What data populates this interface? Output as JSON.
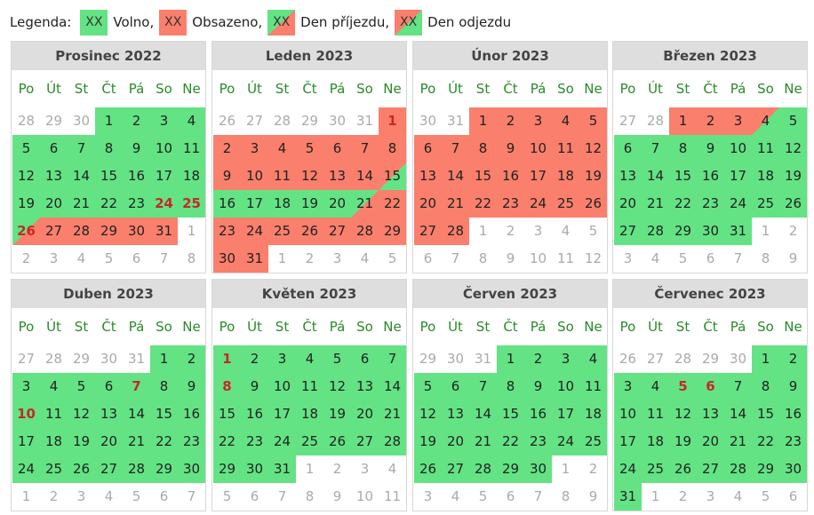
{
  "legend": {
    "label": "Legenda:",
    "swatch_text": "XX",
    "items": [
      {
        "state": "free",
        "text": "Volno,"
      },
      {
        "state": "busy",
        "text": "Obsazeno,"
      },
      {
        "state": "arr",
        "text": "Den příjezdu,"
      },
      {
        "state": "dep",
        "text": "Den odjezdu"
      }
    ]
  },
  "colors": {
    "free": "#63e384",
    "busy": "#fa7f6c",
    "weekday": "#2a8a2a",
    "holiday": "#c62828"
  },
  "weekdays": [
    "Po",
    "Út",
    "St",
    "Čt",
    "Pá",
    "So",
    "Ne"
  ],
  "months": [
    {
      "title": "Prosinec 2022",
      "cells": [
        [
          "28",
          "o"
        ],
        [
          "29",
          "o"
        ],
        [
          "30",
          "o"
        ],
        [
          "1",
          "free"
        ],
        [
          "2",
          "free"
        ],
        [
          "3",
          "free"
        ],
        [
          "4",
          "free"
        ],
        [
          "5",
          "free"
        ],
        [
          "6",
          "free"
        ],
        [
          "7",
          "free"
        ],
        [
          "8",
          "free"
        ],
        [
          "9",
          "free"
        ],
        [
          "10",
          "free"
        ],
        [
          "11",
          "free"
        ],
        [
          "12",
          "free"
        ],
        [
          "13",
          "free"
        ],
        [
          "14",
          "free"
        ],
        [
          "15",
          "free"
        ],
        [
          "16",
          "free"
        ],
        [
          "17",
          "free"
        ],
        [
          "18",
          "free"
        ],
        [
          "19",
          "free"
        ],
        [
          "20",
          "free"
        ],
        [
          "21",
          "free"
        ],
        [
          "22",
          "free"
        ],
        [
          "23",
          "free"
        ],
        [
          "24",
          "free",
          "h"
        ],
        [
          "25",
          "free",
          "h"
        ],
        [
          "26",
          "arr",
          "h"
        ],
        [
          "27",
          "busy"
        ],
        [
          "28",
          "busy"
        ],
        [
          "29",
          "busy"
        ],
        [
          "30",
          "busy"
        ],
        [
          "31",
          "busy"
        ],
        [
          "1",
          "o"
        ],
        [
          "2",
          "o"
        ],
        [
          "3",
          "o"
        ],
        [
          "4",
          "o"
        ],
        [
          "5",
          "o"
        ],
        [
          "6",
          "o"
        ],
        [
          "7",
          "o"
        ],
        [
          "8",
          "o"
        ]
      ]
    },
    {
      "title": "Leden 2023",
      "cells": [
        [
          "26",
          "o"
        ],
        [
          "27",
          "o"
        ],
        [
          "28",
          "o"
        ],
        [
          "29",
          "o"
        ],
        [
          "30",
          "o"
        ],
        [
          "31",
          "o"
        ],
        [
          "1",
          "busy",
          "h"
        ],
        [
          "2",
          "busy"
        ],
        [
          "3",
          "busy"
        ],
        [
          "4",
          "busy"
        ],
        [
          "5",
          "busy"
        ],
        [
          "6",
          "busy"
        ],
        [
          "7",
          "busy"
        ],
        [
          "8",
          "busy"
        ],
        [
          "9",
          "busy"
        ],
        [
          "10",
          "busy"
        ],
        [
          "11",
          "busy"
        ],
        [
          "12",
          "busy"
        ],
        [
          "13",
          "busy"
        ],
        [
          "14",
          "busy"
        ],
        [
          "15",
          "dep"
        ],
        [
          "16",
          "free"
        ],
        [
          "17",
          "free"
        ],
        [
          "18",
          "free"
        ],
        [
          "19",
          "free"
        ],
        [
          "20",
          "free"
        ],
        [
          "21",
          "arr"
        ],
        [
          "22",
          "busy"
        ],
        [
          "23",
          "busy"
        ],
        [
          "24",
          "busy"
        ],
        [
          "25",
          "busy"
        ],
        [
          "26",
          "busy"
        ],
        [
          "27",
          "busy"
        ],
        [
          "28",
          "busy"
        ],
        [
          "29",
          "busy"
        ],
        [
          "30",
          "busy"
        ],
        [
          "31",
          "busy"
        ],
        [
          "1",
          "o"
        ],
        [
          "2",
          "o"
        ],
        [
          "3",
          "o"
        ],
        [
          "4",
          "o"
        ],
        [
          "5",
          "o"
        ]
      ]
    },
    {
      "title": "Únor 2023",
      "cells": [
        [
          "30",
          "o"
        ],
        [
          "31",
          "o"
        ],
        [
          "1",
          "busy"
        ],
        [
          "2",
          "busy"
        ],
        [
          "3",
          "busy"
        ],
        [
          "4",
          "busy"
        ],
        [
          "5",
          "busy"
        ],
        [
          "6",
          "busy"
        ],
        [
          "7",
          "busy"
        ],
        [
          "8",
          "busy"
        ],
        [
          "9",
          "busy"
        ],
        [
          "10",
          "busy"
        ],
        [
          "11",
          "busy"
        ],
        [
          "12",
          "busy"
        ],
        [
          "13",
          "busy"
        ],
        [
          "14",
          "busy"
        ],
        [
          "15",
          "busy"
        ],
        [
          "16",
          "busy"
        ],
        [
          "17",
          "busy"
        ],
        [
          "18",
          "busy"
        ],
        [
          "19",
          "busy"
        ],
        [
          "20",
          "busy"
        ],
        [
          "21",
          "busy"
        ],
        [
          "22",
          "busy"
        ],
        [
          "23",
          "busy"
        ],
        [
          "24",
          "busy"
        ],
        [
          "25",
          "busy"
        ],
        [
          "26",
          "busy"
        ],
        [
          "27",
          "busy"
        ],
        [
          "28",
          "busy"
        ],
        [
          "1",
          "o"
        ],
        [
          "2",
          "o"
        ],
        [
          "3",
          "o"
        ],
        [
          "4",
          "o"
        ],
        [
          "5",
          "o"
        ],
        [
          "6",
          "o"
        ],
        [
          "7",
          "o"
        ],
        [
          "8",
          "o"
        ],
        [
          "9",
          "o"
        ],
        [
          "10",
          "o"
        ],
        [
          "11",
          "o"
        ],
        [
          "12",
          "o"
        ]
      ]
    },
    {
      "title": "Březen 2023",
      "cells": [
        [
          "27",
          "o"
        ],
        [
          "28",
          "o"
        ],
        [
          "1",
          "busy"
        ],
        [
          "2",
          "busy"
        ],
        [
          "3",
          "busy"
        ],
        [
          "4",
          "dep"
        ],
        [
          "5",
          "free"
        ],
        [
          "6",
          "free"
        ],
        [
          "7",
          "free"
        ],
        [
          "8",
          "free"
        ],
        [
          "9",
          "free"
        ],
        [
          "10",
          "free"
        ],
        [
          "11",
          "free"
        ],
        [
          "12",
          "free"
        ],
        [
          "13",
          "free"
        ],
        [
          "14",
          "free"
        ],
        [
          "15",
          "free"
        ],
        [
          "16",
          "free"
        ],
        [
          "17",
          "free"
        ],
        [
          "18",
          "free"
        ],
        [
          "19",
          "free"
        ],
        [
          "20",
          "free"
        ],
        [
          "21",
          "free"
        ],
        [
          "22",
          "free"
        ],
        [
          "23",
          "free"
        ],
        [
          "24",
          "free"
        ],
        [
          "25",
          "free"
        ],
        [
          "26",
          "free"
        ],
        [
          "27",
          "free"
        ],
        [
          "28",
          "free"
        ],
        [
          "29",
          "free"
        ],
        [
          "30",
          "free"
        ],
        [
          "31",
          "free"
        ],
        [
          "1",
          "o"
        ],
        [
          "2",
          "o"
        ],
        [
          "3",
          "o"
        ],
        [
          "4",
          "o"
        ],
        [
          "5",
          "o"
        ],
        [
          "6",
          "o"
        ],
        [
          "7",
          "o"
        ],
        [
          "8",
          "o"
        ],
        [
          "9",
          "o"
        ]
      ]
    },
    {
      "title": "Duben 2023",
      "cells": [
        [
          "27",
          "o"
        ],
        [
          "28",
          "o"
        ],
        [
          "29",
          "o"
        ],
        [
          "30",
          "o"
        ],
        [
          "31",
          "o"
        ],
        [
          "1",
          "free"
        ],
        [
          "2",
          "free"
        ],
        [
          "3",
          "free"
        ],
        [
          "4",
          "free"
        ],
        [
          "5",
          "free"
        ],
        [
          "6",
          "free"
        ],
        [
          "7",
          "free",
          "h"
        ],
        [
          "8",
          "free"
        ],
        [
          "9",
          "free"
        ],
        [
          "10",
          "free",
          "h"
        ],
        [
          "11",
          "free"
        ],
        [
          "12",
          "free"
        ],
        [
          "13",
          "free"
        ],
        [
          "14",
          "free"
        ],
        [
          "15",
          "free"
        ],
        [
          "16",
          "free"
        ],
        [
          "17",
          "free"
        ],
        [
          "18",
          "free"
        ],
        [
          "19",
          "free"
        ],
        [
          "20",
          "free"
        ],
        [
          "21",
          "free"
        ],
        [
          "22",
          "free"
        ],
        [
          "23",
          "free"
        ],
        [
          "24",
          "free"
        ],
        [
          "25",
          "free"
        ],
        [
          "26",
          "free"
        ],
        [
          "27",
          "free"
        ],
        [
          "28",
          "free"
        ],
        [
          "29",
          "free"
        ],
        [
          "30",
          "free"
        ],
        [
          "1",
          "o"
        ],
        [
          "2",
          "o"
        ],
        [
          "3",
          "o"
        ],
        [
          "4",
          "o"
        ],
        [
          "5",
          "o"
        ],
        [
          "6",
          "o"
        ],
        [
          "7",
          "o"
        ]
      ]
    },
    {
      "title": "Květen 2023",
      "cells": [
        [
          "1",
          "free",
          "h"
        ],
        [
          "2",
          "free"
        ],
        [
          "3",
          "free"
        ],
        [
          "4",
          "free"
        ],
        [
          "5",
          "free"
        ],
        [
          "6",
          "free"
        ],
        [
          "7",
          "free"
        ],
        [
          "8",
          "free",
          "h"
        ],
        [
          "9",
          "free"
        ],
        [
          "10",
          "free"
        ],
        [
          "11",
          "free"
        ],
        [
          "12",
          "free"
        ],
        [
          "13",
          "free"
        ],
        [
          "14",
          "free"
        ],
        [
          "15",
          "free"
        ],
        [
          "16",
          "free"
        ],
        [
          "17",
          "free"
        ],
        [
          "18",
          "free"
        ],
        [
          "19",
          "free"
        ],
        [
          "20",
          "free"
        ],
        [
          "21",
          "free"
        ],
        [
          "22",
          "free"
        ],
        [
          "23",
          "free"
        ],
        [
          "24",
          "free"
        ],
        [
          "25",
          "free"
        ],
        [
          "26",
          "free"
        ],
        [
          "27",
          "free"
        ],
        [
          "28",
          "free"
        ],
        [
          "29",
          "free"
        ],
        [
          "30",
          "free"
        ],
        [
          "31",
          "free"
        ],
        [
          "1",
          "o"
        ],
        [
          "2",
          "o"
        ],
        [
          "3",
          "o"
        ],
        [
          "4",
          "o"
        ],
        [
          "5",
          "o"
        ],
        [
          "6",
          "o"
        ],
        [
          "7",
          "o"
        ],
        [
          "8",
          "o"
        ],
        [
          "9",
          "o"
        ],
        [
          "10",
          "o"
        ],
        [
          "11",
          "o"
        ]
      ]
    },
    {
      "title": "Červen 2023",
      "cells": [
        [
          "29",
          "o"
        ],
        [
          "30",
          "o"
        ],
        [
          "31",
          "o"
        ],
        [
          "1",
          "free"
        ],
        [
          "2",
          "free"
        ],
        [
          "3",
          "free"
        ],
        [
          "4",
          "free"
        ],
        [
          "5",
          "free"
        ],
        [
          "6",
          "free"
        ],
        [
          "7",
          "free"
        ],
        [
          "8",
          "free"
        ],
        [
          "9",
          "free"
        ],
        [
          "10",
          "free"
        ],
        [
          "11",
          "free"
        ],
        [
          "12",
          "free"
        ],
        [
          "13",
          "free"
        ],
        [
          "14",
          "free"
        ],
        [
          "15",
          "free"
        ],
        [
          "16",
          "free"
        ],
        [
          "17",
          "free"
        ],
        [
          "18",
          "free"
        ],
        [
          "19",
          "free"
        ],
        [
          "20",
          "free"
        ],
        [
          "21",
          "free"
        ],
        [
          "22",
          "free"
        ],
        [
          "23",
          "free"
        ],
        [
          "24",
          "free"
        ],
        [
          "25",
          "free"
        ],
        [
          "26",
          "free"
        ],
        [
          "27",
          "free"
        ],
        [
          "28",
          "free"
        ],
        [
          "29",
          "free"
        ],
        [
          "30",
          "free"
        ],
        [
          "1",
          "o"
        ],
        [
          "2",
          "o"
        ],
        [
          "3",
          "o"
        ],
        [
          "4",
          "o"
        ],
        [
          "5",
          "o"
        ],
        [
          "6",
          "o"
        ],
        [
          "7",
          "o"
        ],
        [
          "8",
          "o"
        ],
        [
          "9",
          "o"
        ]
      ]
    },
    {
      "title": "Červenec 2023",
      "cells": [
        [
          "26",
          "o"
        ],
        [
          "27",
          "o"
        ],
        [
          "28",
          "o"
        ],
        [
          "29",
          "o"
        ],
        [
          "30",
          "o"
        ],
        [
          "1",
          "free"
        ],
        [
          "2",
          "free"
        ],
        [
          "3",
          "free"
        ],
        [
          "4",
          "free"
        ],
        [
          "5",
          "free",
          "h"
        ],
        [
          "6",
          "free",
          "h"
        ],
        [
          "7",
          "free"
        ],
        [
          "8",
          "free"
        ],
        [
          "9",
          "free"
        ],
        [
          "10",
          "free"
        ],
        [
          "11",
          "free"
        ],
        [
          "12",
          "free"
        ],
        [
          "13",
          "free"
        ],
        [
          "14",
          "free"
        ],
        [
          "15",
          "free"
        ],
        [
          "16",
          "free"
        ],
        [
          "17",
          "free"
        ],
        [
          "18",
          "free"
        ],
        [
          "19",
          "free"
        ],
        [
          "20",
          "free"
        ],
        [
          "21",
          "free"
        ],
        [
          "22",
          "free"
        ],
        [
          "23",
          "free"
        ],
        [
          "24",
          "free"
        ],
        [
          "25",
          "free"
        ],
        [
          "26",
          "free"
        ],
        [
          "27",
          "free"
        ],
        [
          "28",
          "free"
        ],
        [
          "29",
          "free"
        ],
        [
          "30",
          "free"
        ],
        [
          "31",
          "free"
        ],
        [
          "1",
          "o"
        ],
        [
          "2",
          "o"
        ],
        [
          "3",
          "o"
        ],
        [
          "4",
          "o"
        ],
        [
          "5",
          "o"
        ],
        [
          "6",
          "o"
        ]
      ]
    }
  ]
}
